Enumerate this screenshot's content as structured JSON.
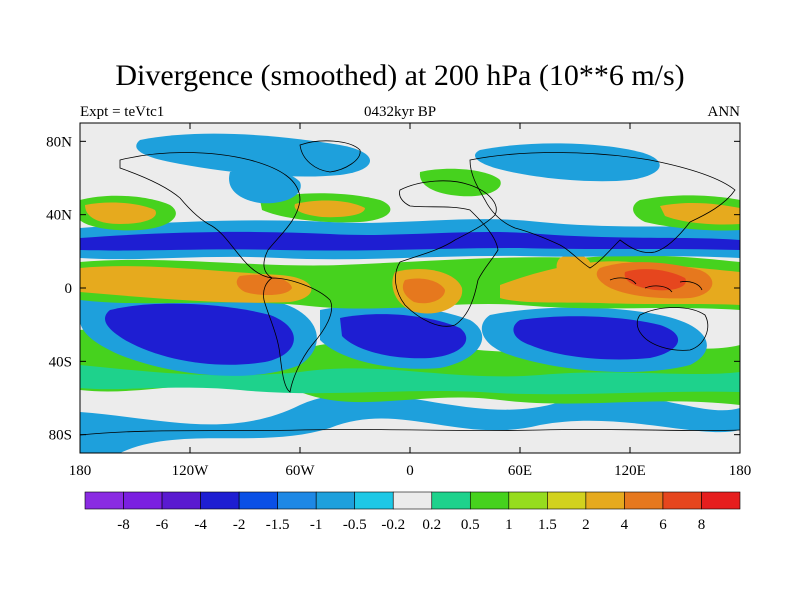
{
  "title": "Divergence (smoothed) at 200 hPa (10**6 m/s)",
  "subtitle_left": "Expt = teVtc1",
  "subtitle_center": "0432kyr BP",
  "subtitle_right": "ANN",
  "lat_ticks": [
    {
      "label": "80N",
      "lat": 80
    },
    {
      "label": "40N",
      "lat": 40
    },
    {
      "label": "0",
      "lat": 0
    },
    {
      "label": "40S",
      "lat": -40
    },
    {
      "label": "80S",
      "lat": -80
    }
  ],
  "lon_ticks": [
    {
      "label": "180",
      "lon": -180
    },
    {
      "label": "120W",
      "lon": -120
    },
    {
      "label": "60W",
      "lon": -60
    },
    {
      "label": "0",
      "lon": 0
    },
    {
      "label": "60E",
      "lon": 60
    },
    {
      "label": "120E",
      "lon": 120
    },
    {
      "label": "180",
      "lon": 180
    }
  ],
  "colorbar": {
    "colors": [
      "#8a2be2",
      "#7b1fe0",
      "#5a1ad0",
      "#1e1ed2",
      "#0a50e6",
      "#1e88e5",
      "#1ea0dc",
      "#1ec8e6",
      "#ececec",
      "#1ed28c",
      "#46d21e",
      "#96dc1e",
      "#d2d21e",
      "#e6aa1e",
      "#e6781e",
      "#e6461e",
      "#e61e1e"
    ],
    "labels": [
      "-8",
      "-6",
      "-4",
      "-2",
      "-1.5",
      "-1",
      "-0.5",
      "-0.2",
      "0.2",
      "0.5",
      "1",
      "1.5",
      "2",
      "4",
      "6",
      "8"
    ]
  }
}
